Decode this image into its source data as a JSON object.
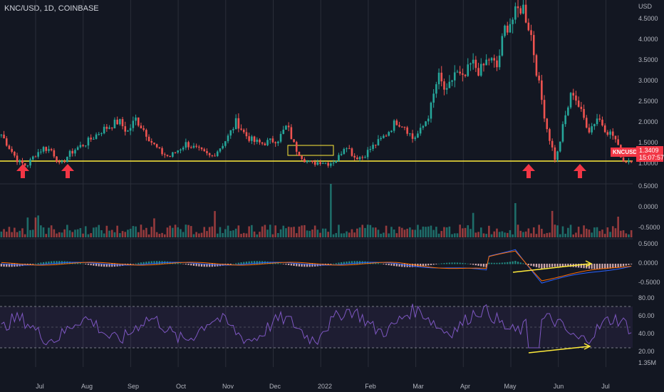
{
  "header": {
    "title": "KNC/USD, 1D, COINBASE"
  },
  "price_axis": {
    "unit": "USD",
    "labels": [
      "4.5000",
      "4.0000",
      "3.5000",
      "3.0000",
      "2.5000",
      "2.0000",
      "1.5000",
      "1.0000"
    ]
  },
  "volume_axis": {
    "labels": [
      "0.5000",
      "0.0000",
      "-0.5000"
    ]
  },
  "macd_axis": {
    "labels": [
      "0.5000",
      "0.0000",
      "-0.5000"
    ]
  },
  "rsi_axis": {
    "labels": [
      "80.00",
      "60.00",
      "40.00",
      "20.00"
    ]
  },
  "extra_label": "1.35M",
  "time_axis": [
    "Jul",
    "Aug",
    "Sep",
    "Oct",
    "Nov",
    "Dec",
    "2022",
    "Feb",
    "Mar",
    "Apr",
    "May",
    "Jun",
    "Jul"
  ],
  "last_price": {
    "symbol": "KNCUSD",
    "price": "1.3409",
    "countdown": "15:07:57"
  },
  "colors": {
    "up": "#26a69a",
    "down": "#ef5350",
    "support": "#ffeb3b",
    "rsi": "#7e57c2",
    "macd": "#2962ff",
    "signal": "#ff6d00",
    "arrow": "#f23645"
  },
  "chart_data": {
    "type": "candlestick",
    "title": "KNC/USD, 1D, COINBASE",
    "x": [
      "Jul",
      "Aug",
      "Sep",
      "Oct",
      "Nov",
      "Dec",
      "2022",
      "Feb",
      "Mar",
      "Apr",
      "May",
      "Jun",
      "Jul"
    ],
    "close_path": [
      1.9,
      1.6,
      1.3,
      1.2,
      1.45,
      1.6,
      1.55,
      1.2,
      1.45,
      1.6,
      1.7,
      1.85,
      2.0,
      2.1,
      2.2,
      1.95,
      2.25,
      2.0,
      1.7,
      1.5,
      1.4,
      1.55,
      1.7,
      1.6,
      1.5,
      1.4,
      1.6,
      1.85,
      2.2,
      1.9,
      1.75,
      1.7,
      1.75,
      1.8,
      2.1,
      1.6,
      1.35,
      1.25,
      1.3,
      1.25,
      1.35,
      1.7,
      1.4,
      1.4,
      1.6,
      1.75,
      1.95,
      2.2,
      2.1,
      1.8,
      2.0,
      2.4,
      3.2,
      2.8,
      3.3,
      3.1,
      3.5,
      3.3,
      3.6,
      3.4,
      4.3,
      4.5,
      4.8,
      4.2,
      3.0,
      2.0,
      1.3,
      2.2,
      2.9,
      2.4,
      2.0,
      2.3,
      2.0,
      1.85,
      1.3,
      1.34
    ],
    "support_level": 1.1,
    "arrows": [
      "early Jul",
      "late Jul",
      "mid May",
      "early Jun"
    ],
    "ylim": [
      0.8,
      4.9
    ],
    "rsi_bands": [
      70,
      50,
      30
    ]
  }
}
